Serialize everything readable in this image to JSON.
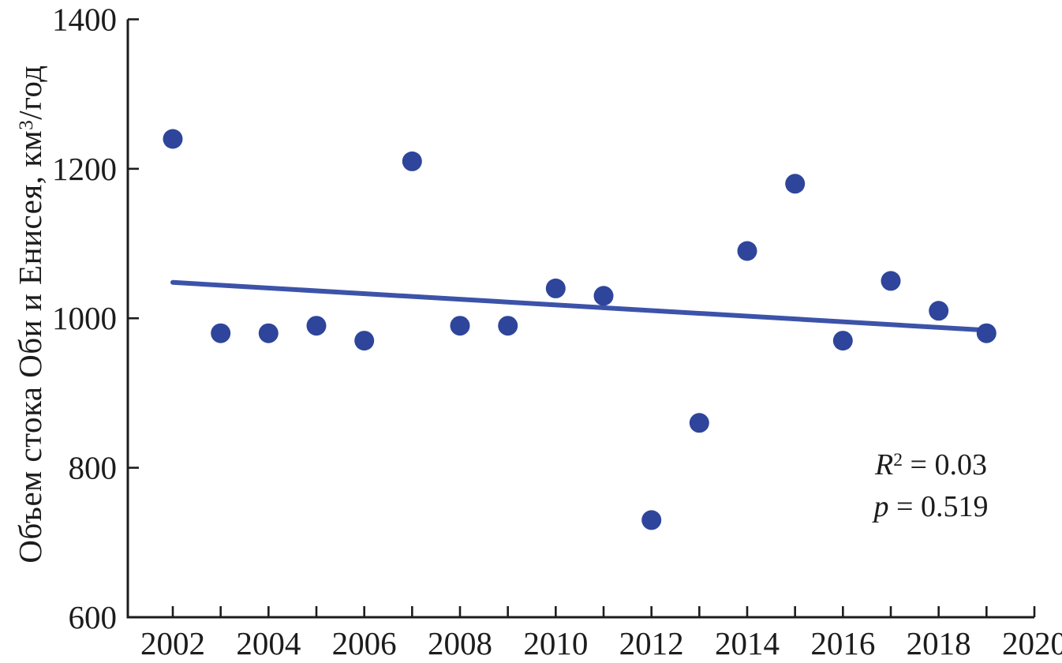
{
  "chart_data": {
    "type": "scatter",
    "title": "",
    "xlabel": "",
    "ylabel": "Объем стока Оби и Енисея, км³/год",
    "ylabel_parts": {
      "main": "Объем стока Оби и Енисея, км",
      "sup": "3",
      "rest": "/год"
    },
    "x": [
      2002,
      2003,
      2004,
      2005,
      2006,
      2007,
      2008,
      2009,
      2010,
      2011,
      2012,
      2013,
      2014,
      2015,
      2016,
      2017,
      2018,
      2019
    ],
    "y": [
      1240,
      980,
      980,
      990,
      970,
      1210,
      990,
      990,
      1040,
      1030,
      730,
      860,
      1090,
      1180,
      970,
      1050,
      1010,
      980
    ],
    "xlim": [
      2002,
      2020
    ],
    "ylim": [
      600,
      1400
    ],
    "yticks": [
      600,
      800,
      1000,
      1200,
      1400
    ],
    "xticks_minor_every": 1,
    "xticks_labeled": [
      2002,
      2004,
      2006,
      2008,
      2010,
      2012,
      2014,
      2016,
      2018,
      2020
    ],
    "grid": false,
    "legend": "none",
    "trendline": {
      "x": [
        2002,
        2019
      ],
      "y": [
        1048,
        984
      ]
    },
    "annotations": [
      {
        "text": "R² = 0.03",
        "var": "R",
        "sup": "2",
        "eq": " = 0.03"
      },
      {
        "text": "p = 0.519",
        "var": "p",
        "sup": "",
        "eq": " = 0.519"
      }
    ],
    "colors": {
      "point": "#2e459b",
      "trend": "#3c53a9",
      "axis": "#1c1c1c",
      "text": "#1c1c1c"
    },
    "point_radius": 12.5
  }
}
